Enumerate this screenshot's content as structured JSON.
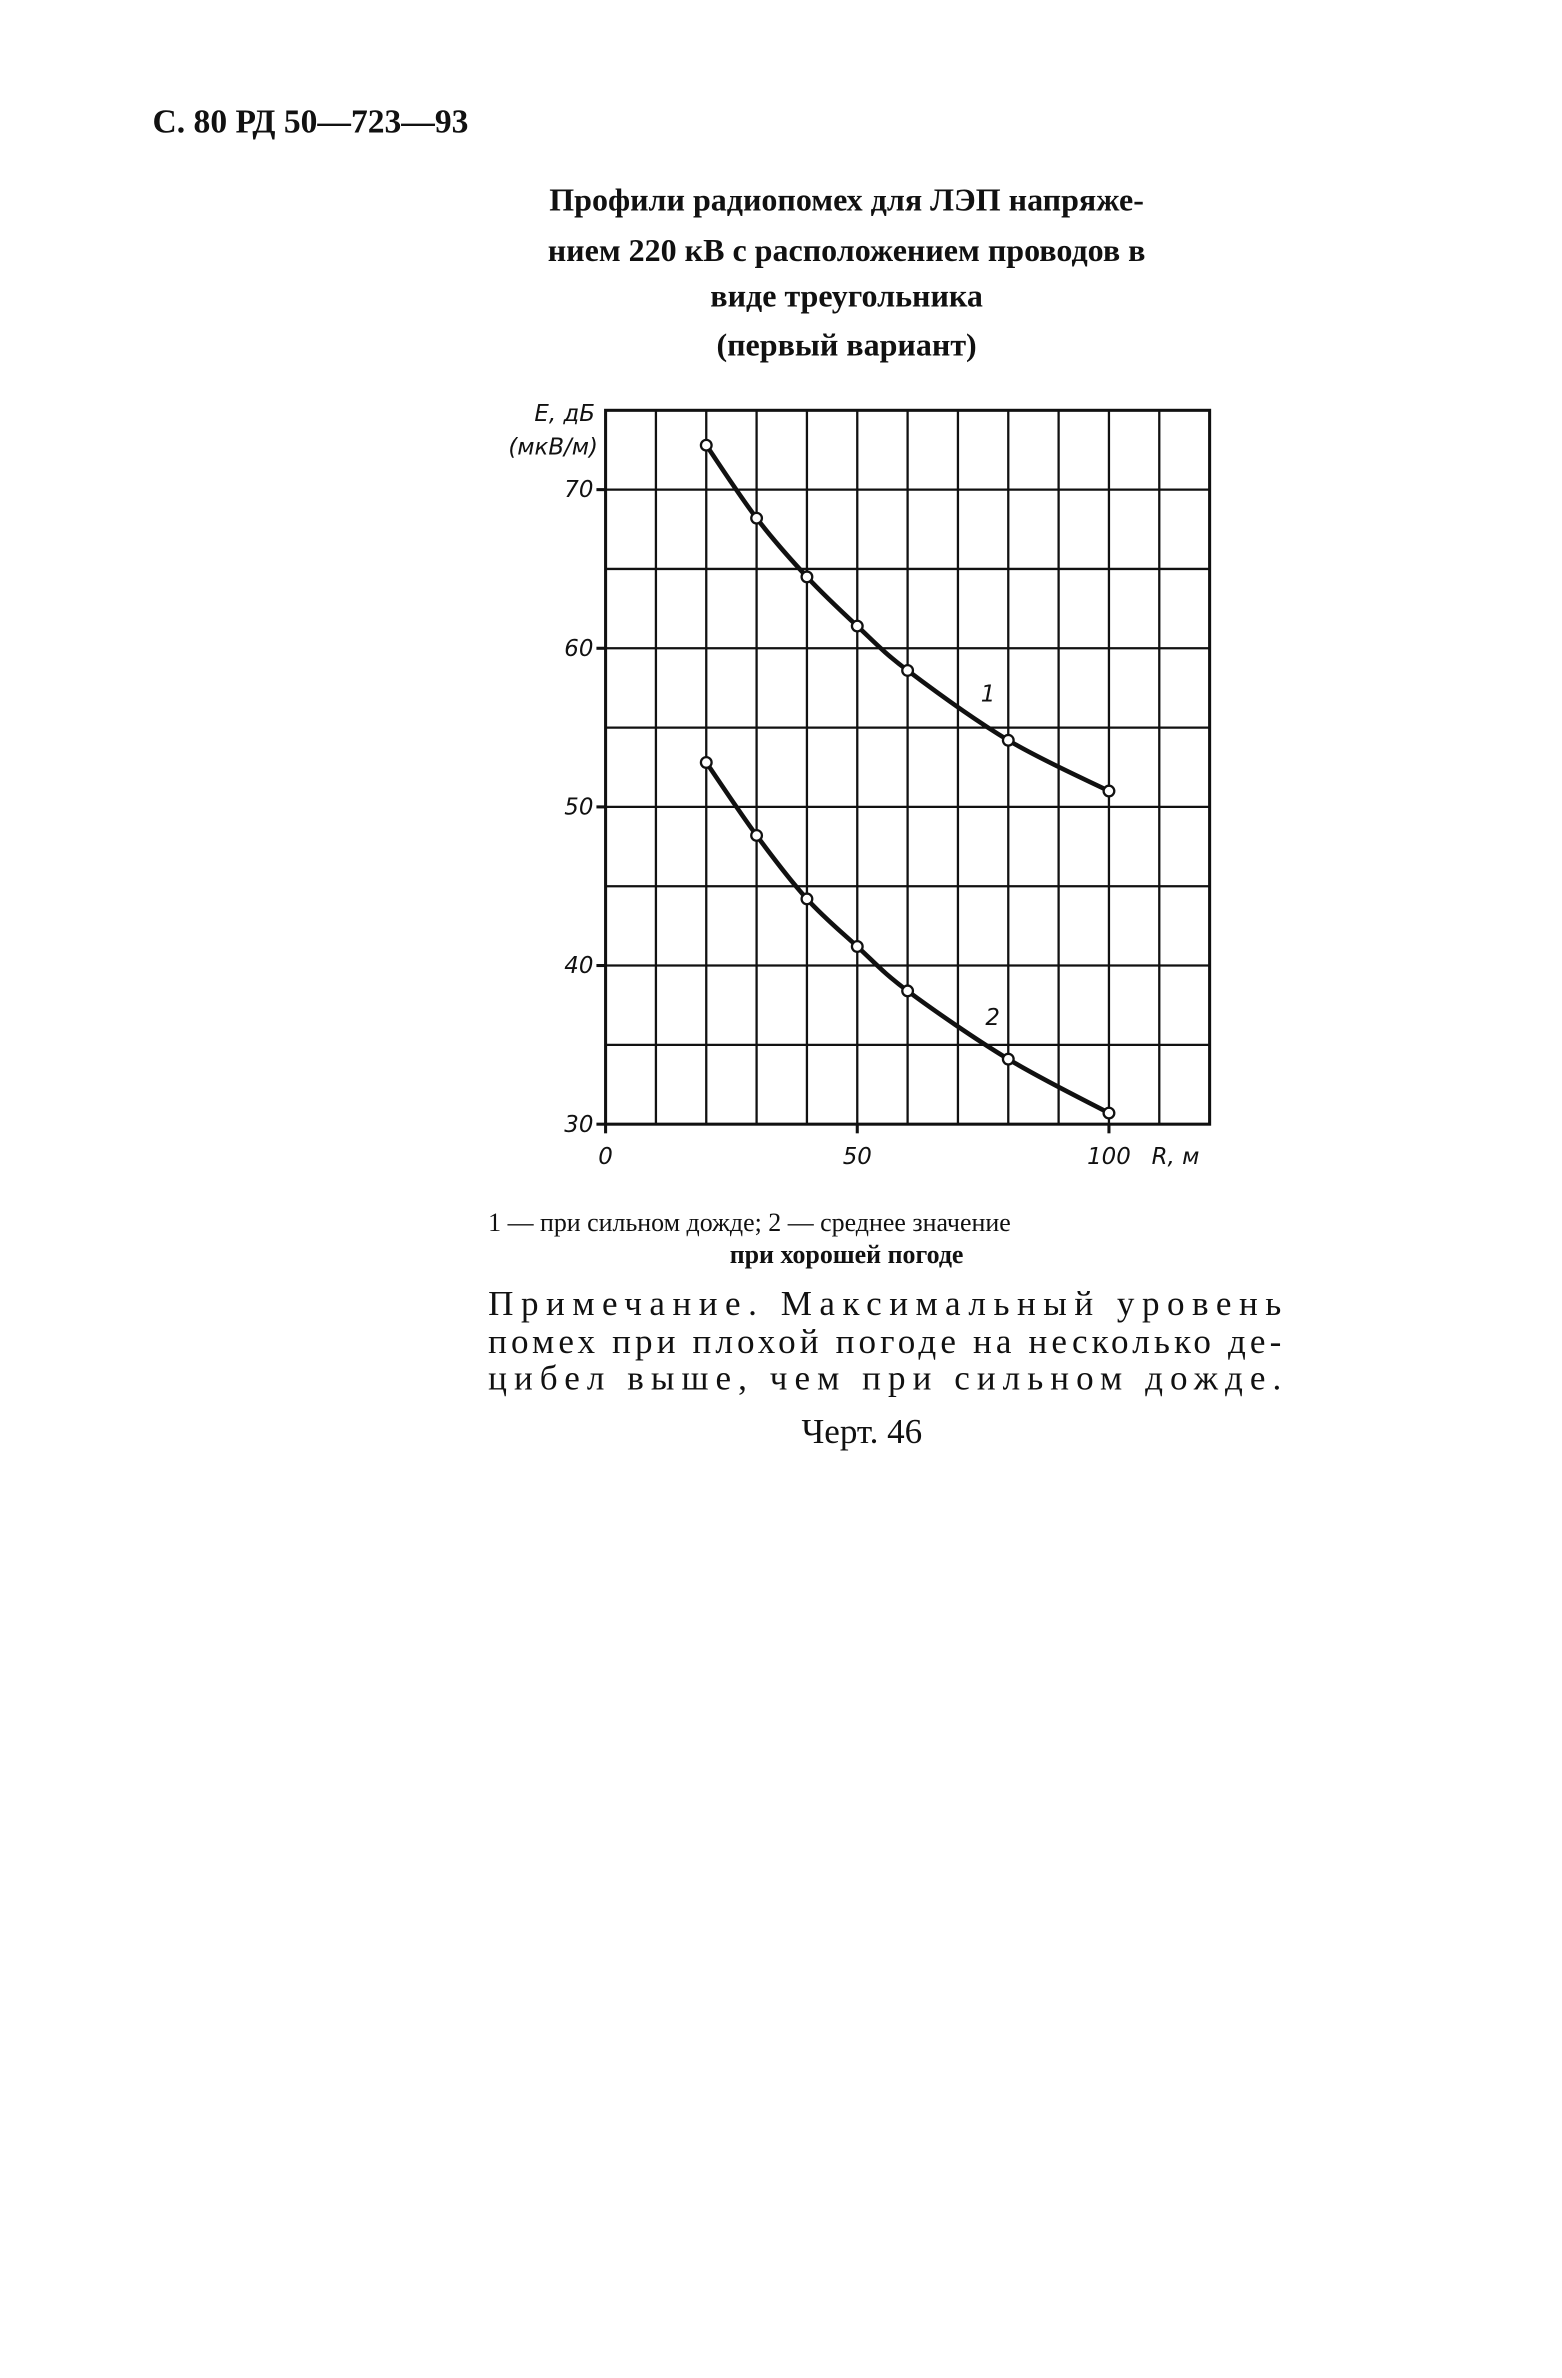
{
  "header": "С. 80 РД 50—723—93",
  "title_lines": [
    "Профили радиопомех для ЛЭП напряже-",
    "нием 220 кВ с расположением проводов в",
    "виде треугольника",
    "(первый вариант)"
  ],
  "chart_data": {
    "type": "line",
    "ylabel_lines": [
      "E, дБ",
      "(мкВ/м)"
    ],
    "xlabel": "R, м",
    "xlim": [
      0,
      120
    ],
    "ylim": [
      30,
      75
    ],
    "xticks": [
      0,
      50,
      100
    ],
    "yticks": [
      30,
      40,
      50,
      60,
      70
    ],
    "xgrid": [
      10,
      20,
      30,
      40,
      50,
      60,
      70,
      80,
      90,
      100,
      110,
      120
    ],
    "ygrid": [
      35,
      40,
      45,
      50,
      55,
      60,
      65,
      70,
      75
    ],
    "grid": true,
    "color": "#111111",
    "x": [
      20,
      30,
      40,
      50,
      60,
      80,
      100
    ],
    "series": [
      {
        "name": "1",
        "color": "#111111",
        "values": [
          72.8,
          68.2,
          64.5,
          61.4,
          58.6,
          54.2,
          51.0
        ]
      },
      {
        "name": "2",
        "color": "#111111",
        "values": [
          52.8,
          48.2,
          44.2,
          41.2,
          38.4,
          34.1,
          30.7
        ]
      }
    ]
  },
  "caption_lines": [
    "1 — при сильном дожде; 2 — среднее значение",
    "при хорошей погоде"
  ],
  "note_lines": [
    "Примечание. Максимальный уровень",
    "помех при плохой погоде на несколько де-",
    "цибел выше, чем при сильном дожде."
  ],
  "figure_label": "Черт. 46"
}
